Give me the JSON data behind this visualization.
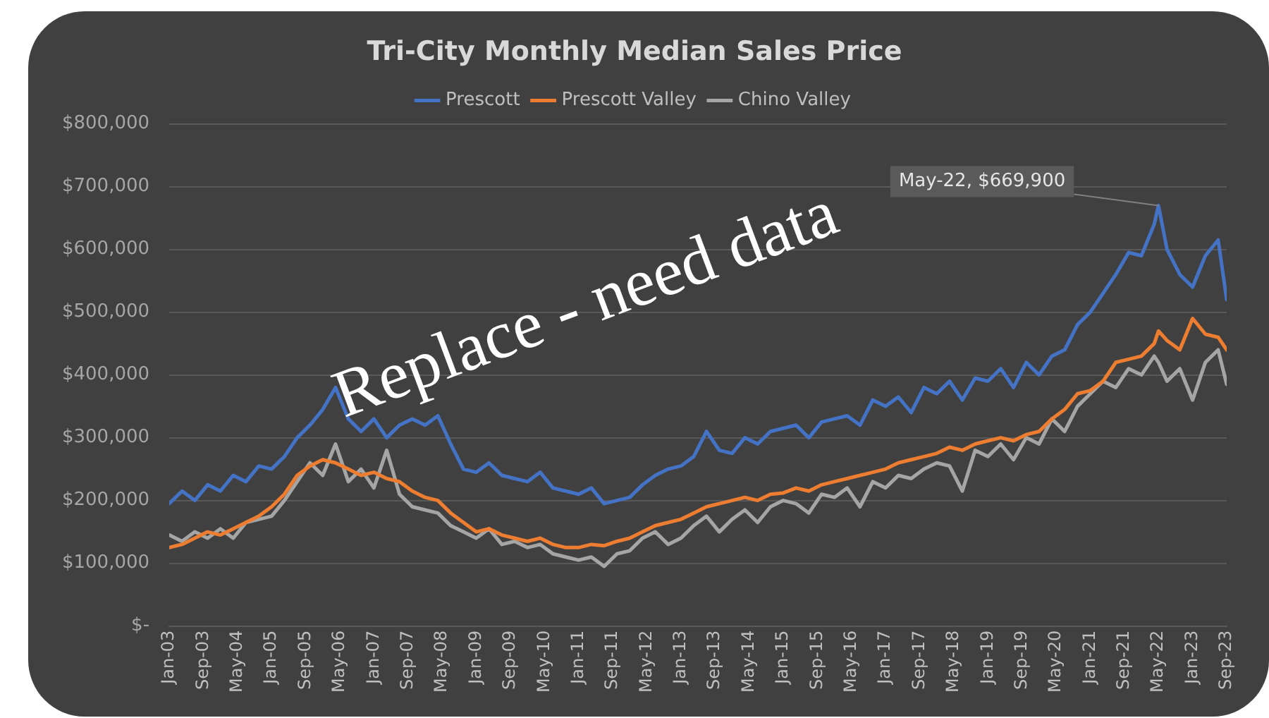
{
  "chart_data": {
    "type": "line",
    "title": "Tri-City Monthly Median Sales Price",
    "x": [
      "2003-01",
      "2003-04",
      "2003-07",
      "2003-10",
      "2004-01",
      "2004-04",
      "2004-07",
      "2004-10",
      "2005-01",
      "2005-04",
      "2005-07",
      "2005-10",
      "2006-01",
      "2006-04",
      "2006-07",
      "2006-10",
      "2007-01",
      "2007-04",
      "2007-07",
      "2007-10",
      "2008-01",
      "2008-04",
      "2008-07",
      "2008-10",
      "2009-01",
      "2009-04",
      "2009-07",
      "2009-10",
      "2010-01",
      "2010-04",
      "2010-07",
      "2010-10",
      "2011-01",
      "2011-04",
      "2011-07",
      "2011-10",
      "2012-01",
      "2012-04",
      "2012-07",
      "2012-10",
      "2013-01",
      "2013-04",
      "2013-07",
      "2013-10",
      "2014-01",
      "2014-04",
      "2014-07",
      "2014-10",
      "2015-01",
      "2015-04",
      "2015-07",
      "2015-10",
      "2016-01",
      "2016-04",
      "2016-07",
      "2016-10",
      "2017-01",
      "2017-04",
      "2017-07",
      "2017-10",
      "2018-01",
      "2018-04",
      "2018-07",
      "2018-10",
      "2019-01",
      "2019-04",
      "2019-07",
      "2019-10",
      "2020-01",
      "2020-04",
      "2020-07",
      "2020-10",
      "2021-01",
      "2021-04",
      "2021-07",
      "2021-10",
      "2022-01",
      "2022-04",
      "2022-05",
      "2022-07",
      "2022-10",
      "2023-01",
      "2023-04",
      "2023-07",
      "2023-09"
    ],
    "series": [
      {
        "name": "Prescott",
        "color": "#4472c4",
        "values": [
          195000,
          215000,
          200000,
          225000,
          215000,
          240000,
          230000,
          255000,
          250000,
          270000,
          300000,
          320000,
          345000,
          380000,
          330000,
          310000,
          330000,
          300000,
          320000,
          330000,
          320000,
          335000,
          290000,
          250000,
          245000,
          260000,
          240000,
          235000,
          230000,
          245000,
          220000,
          215000,
          210000,
          220000,
          195000,
          200000,
          205000,
          225000,
          240000,
          250000,
          255000,
          270000,
          310000,
          280000,
          275000,
          300000,
          290000,
          310000,
          315000,
          320000,
          300000,
          325000,
          330000,
          335000,
          320000,
          360000,
          350000,
          365000,
          340000,
          380000,
          370000,
          390000,
          360000,
          395000,
          390000,
          410000,
          380000,
          420000,
          400000,
          430000,
          440000,
          480000,
          500000,
          530000,
          560000,
          595000,
          590000,
          640000,
          669900,
          600000,
          560000,
          540000,
          590000,
          615000,
          520000
        ]
      },
      {
        "name": "Prescott Valley",
        "color": "#ed7d31",
        "values": [
          125000,
          130000,
          140000,
          150000,
          145000,
          155000,
          165000,
          175000,
          190000,
          210000,
          240000,
          255000,
          265000,
          260000,
          250000,
          240000,
          245000,
          235000,
          230000,
          215000,
          205000,
          200000,
          180000,
          165000,
          150000,
          155000,
          145000,
          140000,
          135000,
          140000,
          130000,
          125000,
          125000,
          130000,
          128000,
          135000,
          140000,
          150000,
          160000,
          165000,
          170000,
          180000,
          190000,
          195000,
          200000,
          205000,
          200000,
          210000,
          212000,
          220000,
          215000,
          225000,
          230000,
          235000,
          240000,
          245000,
          250000,
          260000,
          265000,
          270000,
          275000,
          285000,
          280000,
          290000,
          295000,
          300000,
          295000,
          305000,
          310000,
          330000,
          345000,
          370000,
          375000,
          390000,
          420000,
          425000,
          430000,
          450000,
          470000,
          455000,
          440000,
          490000,
          465000,
          460000,
          440000
        ]
      },
      {
        "name": "Chino Valley",
        "color": "#a5a5a5",
        "values": [
          145000,
          135000,
          150000,
          140000,
          155000,
          140000,
          165000,
          170000,
          175000,
          200000,
          230000,
          260000,
          240000,
          290000,
          230000,
          250000,
          220000,
          280000,
          210000,
          190000,
          185000,
          180000,
          160000,
          150000,
          140000,
          155000,
          130000,
          135000,
          125000,
          130000,
          115000,
          110000,
          105000,
          110000,
          95000,
          115000,
          120000,
          140000,
          150000,
          130000,
          140000,
          160000,
          175000,
          150000,
          170000,
          185000,
          165000,
          190000,
          200000,
          195000,
          180000,
          210000,
          205000,
          220000,
          190000,
          230000,
          220000,
          240000,
          235000,
          250000,
          260000,
          255000,
          215000,
          280000,
          270000,
          290000,
          265000,
          300000,
          290000,
          330000,
          310000,
          350000,
          370000,
          390000,
          380000,
          410000,
          400000,
          430000,
          420000,
          390000,
          410000,
          360000,
          420000,
          440000,
          385000
        ]
      }
    ],
    "xlim": [
      "2003-01",
      "2023-09"
    ],
    "xticks": [
      {
        "value": "2003-01",
        "label": "Jan-03"
      },
      {
        "value": "2003-09",
        "label": "Sep-03"
      },
      {
        "value": "2004-05",
        "label": "May-04"
      },
      {
        "value": "2005-01",
        "label": "Jan-05"
      },
      {
        "value": "2005-09",
        "label": "Sep-05"
      },
      {
        "value": "2006-05",
        "label": "May-06"
      },
      {
        "value": "2007-01",
        "label": "Jan-07"
      },
      {
        "value": "2007-09",
        "label": "Sep-07"
      },
      {
        "value": "2008-05",
        "label": "May-08"
      },
      {
        "value": "2009-01",
        "label": "Jan-09"
      },
      {
        "value": "2009-09",
        "label": "Sep-09"
      },
      {
        "value": "2010-05",
        "label": "May-10"
      },
      {
        "value": "2011-01",
        "label": "Jan-11"
      },
      {
        "value": "2011-09",
        "label": "Sep-11"
      },
      {
        "value": "2012-05",
        "label": "May-12"
      },
      {
        "value": "2013-01",
        "label": "Jan-13"
      },
      {
        "value": "2013-09",
        "label": "Sep-13"
      },
      {
        "value": "2014-05",
        "label": "May-14"
      },
      {
        "value": "2015-01",
        "label": "Jan-15"
      },
      {
        "value": "2015-09",
        "label": "Sep-15"
      },
      {
        "value": "2016-05",
        "label": "May-16"
      },
      {
        "value": "2017-01",
        "label": "Jan-17"
      },
      {
        "value": "2017-09",
        "label": "Sep-17"
      },
      {
        "value": "2018-05",
        "label": "May-18"
      },
      {
        "value": "2019-01",
        "label": "Jan-19"
      },
      {
        "value": "2019-09",
        "label": "Sep-19"
      },
      {
        "value": "2020-05",
        "label": "May-20"
      },
      {
        "value": "2021-01",
        "label": "Jan-21"
      },
      {
        "value": "2021-09",
        "label": "Sep-21"
      },
      {
        "value": "2022-05",
        "label": "May-22"
      },
      {
        "value": "2023-01",
        "label": "Jan-23"
      },
      {
        "value": "2023-09",
        "label": "Sep-23"
      }
    ],
    "ylim": [
      0,
      800000
    ],
    "yticks": [
      {
        "value": 0,
        "label": "$-"
      },
      {
        "value": 100000,
        "label": "$100,000"
      },
      {
        "value": 200000,
        "label": "$200,000"
      },
      {
        "value": 300000,
        "label": "$300,000"
      },
      {
        "value": 400000,
        "label": "$400,000"
      },
      {
        "value": 500000,
        "label": "$500,000"
      },
      {
        "value": 600000,
        "label": "$600,000"
      },
      {
        "value": 700000,
        "label": "$700,000"
      },
      {
        "value": 800000,
        "label": "$800,000"
      }
    ],
    "grid": "y",
    "legend": "top",
    "annotations": [
      "Replace - need data",
      {
        "text": "May-22, $669,900",
        "x": "2022-05",
        "y": 669900
      }
    ]
  }
}
